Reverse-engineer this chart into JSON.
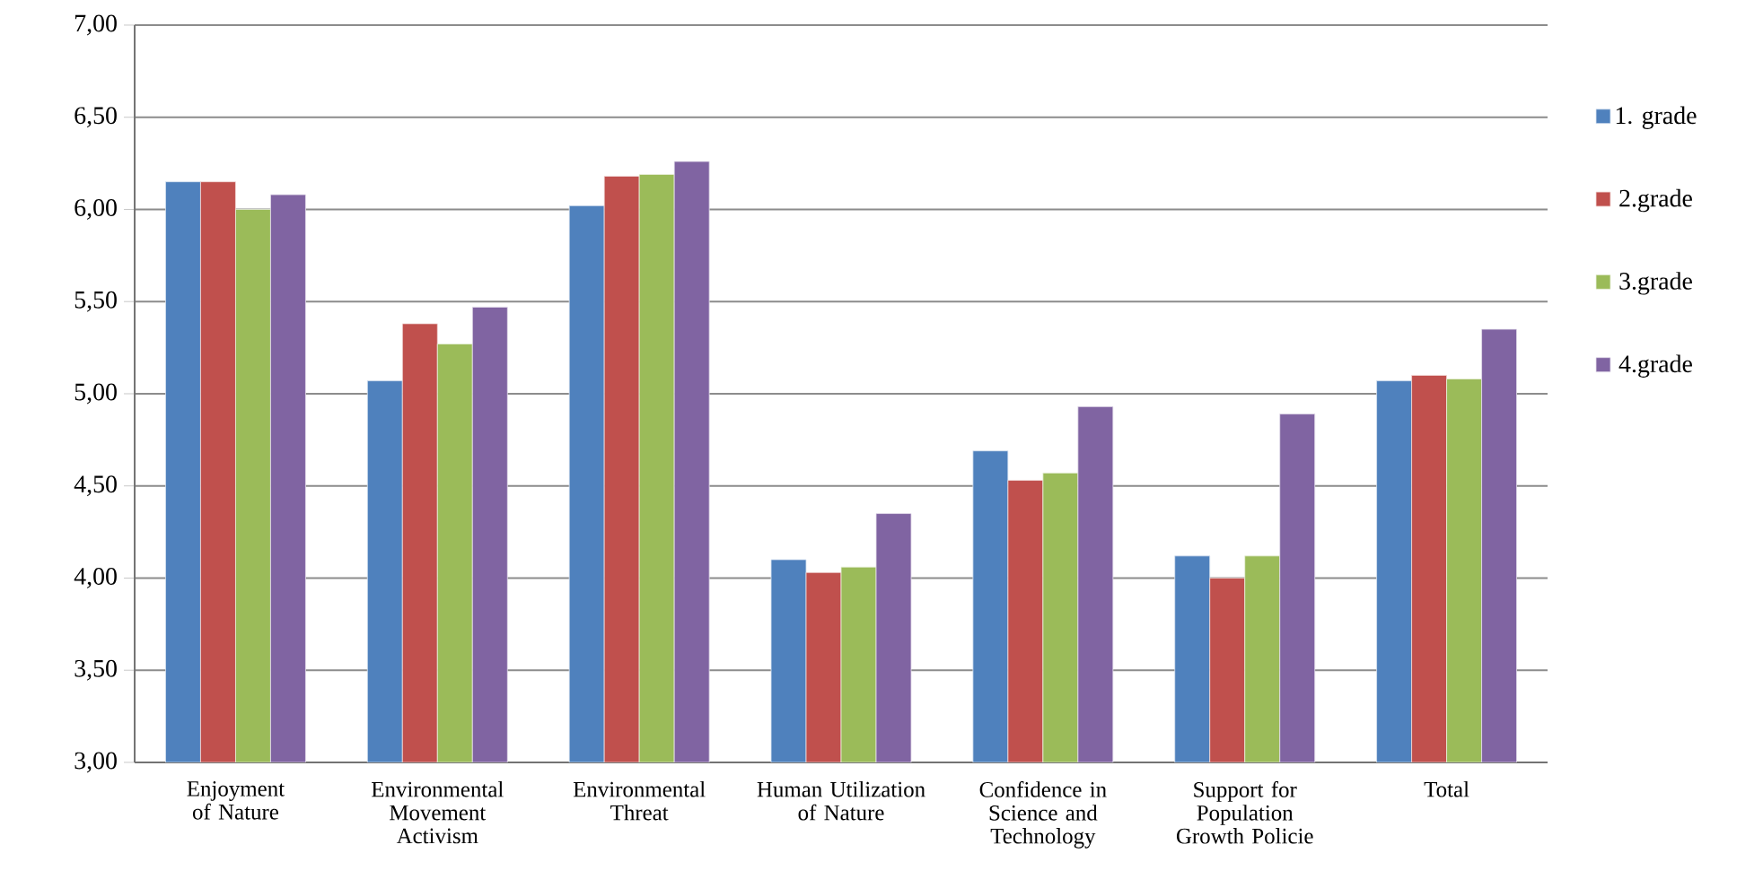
{
  "chart_data": {
    "type": "bar",
    "categories": [
      "Enjoyment of Nature",
      "Environmental Movement Activism",
      "Environmental Threat",
      "Human Utilization of Nature",
      "Confidence in Science and Technology",
      "Support for Population Growth Policie",
      "Total"
    ],
    "series": [
      {
        "name": "1. grade",
        "color": "#4f81bd",
        "values": [
          6.15,
          5.07,
          6.02,
          4.1,
          4.69,
          4.12,
          5.07
        ]
      },
      {
        "name": "2.grade",
        "color": "#c0504d",
        "values": [
          6.15,
          5.38,
          6.18,
          4.03,
          4.53,
          4.0,
          5.1
        ]
      },
      {
        "name": "3.grade",
        "color": "#9bbb59",
        "values": [
          6.0,
          5.27,
          6.19,
          4.06,
          4.57,
          4.12,
          5.08
        ]
      },
      {
        "name": "4.grade",
        "color": "#8064a2",
        "values": [
          6.08,
          5.47,
          6.26,
          4.35,
          4.93,
          4.89,
          5.35
        ]
      }
    ],
    "ylim": [
      3,
      7
    ],
    "yticks": [
      {
        "value": 3,
        "label": "3,00"
      },
      {
        "value": 3.5,
        "label": "3,50"
      },
      {
        "value": 4,
        "label": "4,00"
      },
      {
        "value": 4.5,
        "label": "4,50"
      },
      {
        "value": 5,
        "label": "5,00"
      },
      {
        "value": 5.5,
        "label": "5,50"
      },
      {
        "value": 6,
        "label": "6,00"
      },
      {
        "value": 6.5,
        "label": "6,50"
      },
      {
        "value": 7,
        "label": "7,00"
      }
    ],
    "grid": "y",
    "legend": "right"
  }
}
